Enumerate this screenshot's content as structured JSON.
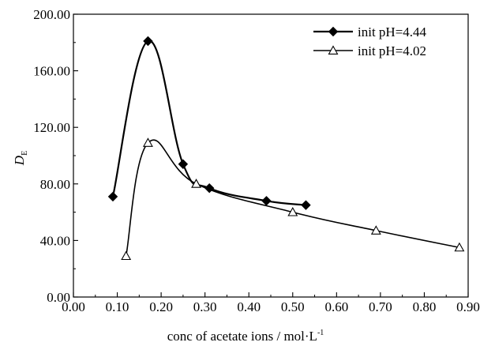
{
  "chart_data": {
    "type": "line",
    "xlabel": "conc of acetate ions / mol·L",
    "xlabel_superscript": "-1",
    "ylabel": "D",
    "ylabel_subscript": "E",
    "xlim": [
      0.0,
      0.9
    ],
    "ylim": [
      0.0,
      200.0
    ],
    "x_ticks": [
      "0.00",
      "0.10",
      "0.20",
      "0.30",
      "0.40",
      "0.50",
      "0.60",
      "0.70",
      "0.80",
      "0.90"
    ],
    "y_ticks": [
      "0.00",
      "40.00",
      "80.00",
      "120.00",
      "160.00",
      "200.00"
    ],
    "grid": false,
    "legend_position": "top-right",
    "series": [
      {
        "name": "init pH=4.44",
        "marker": "filled-diamond",
        "x": [
          0.09,
          0.17,
          0.25,
          0.31,
          0.44,
          0.53
        ],
        "y": [
          71,
          181,
          94,
          77,
          68,
          65
        ]
      },
      {
        "name": "init pH=4.02",
        "marker": "open-triangle",
        "x": [
          0.12,
          0.17,
          0.28,
          0.5,
          0.69,
          0.88
        ],
        "y": [
          29,
          109,
          80,
          60,
          47,
          35
        ]
      }
    ]
  }
}
